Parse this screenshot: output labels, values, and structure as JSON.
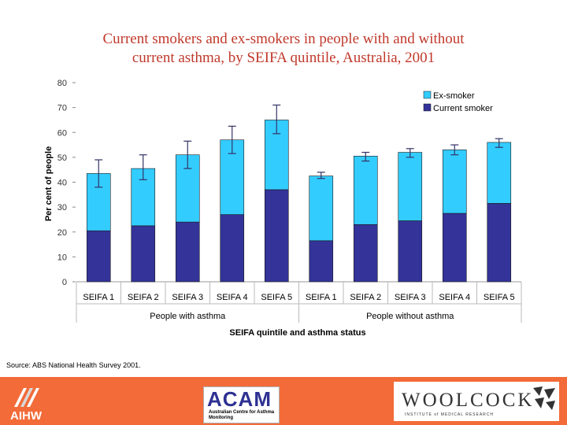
{
  "title_line1": "Current smokers and ex-smokers in people with and without",
  "title_line2": "current asthma, by SEIFA quintile, Australia, 2001",
  "source": "Source: ABS National Health Survey 2001.",
  "footer": {
    "aihw_label": "AIHW",
    "acam_label": "ACAM",
    "acam_subtitle": "Australian Centre for Asthma Monitoring",
    "woolcock_label": "WOOLCOCK",
    "woolcock_subtitle": "INSTITUTE of MEDICAL RESEARCH"
  },
  "chart_data": {
    "type": "bar",
    "stacked": true,
    "categories": [
      "SEIFA 1",
      "SEIFA 2",
      "SEIFA 3",
      "SEIFA 4",
      "SEIFA 5",
      "SEIFA 1",
      "SEIFA 2",
      "SEIFA 3",
      "SEIFA 4",
      "SEIFA 5"
    ],
    "groups": [
      {
        "label": "People with asthma",
        "count": 5
      },
      {
        "label": "People without asthma",
        "count": 5
      }
    ],
    "series": [
      {
        "name": "Current smoker",
        "color": "#333399",
        "values": [
          20.5,
          22.5,
          24,
          27,
          37,
          16.5,
          23,
          24.5,
          27.5,
          31.5
        ]
      },
      {
        "name": "Ex-smoker",
        "color": "#33ccff",
        "values": [
          23,
          23,
          27,
          30,
          28,
          26,
          27.5,
          27.5,
          25.5,
          24.5
        ]
      }
    ],
    "error_bars": {
      "lower": [
        38,
        41,
        45.5,
        51.5,
        59.5,
        41.5,
        48.5,
        50,
        51,
        54
      ],
      "upper": [
        49,
        51,
        56.5,
        62.5,
        71,
        44,
        52,
        53.5,
        55,
        57.5
      ]
    },
    "ylabel": "Per cent of people",
    "xlabel": "SEIFA quintile and asthma status",
    "ylim": [
      0,
      80
    ],
    "yticks": [
      0,
      10,
      20,
      30,
      40,
      50,
      60,
      70,
      80
    ],
    "legend_position": "top-right",
    "legend_order": [
      "Ex-smoker",
      "Current smoker"
    ]
  }
}
